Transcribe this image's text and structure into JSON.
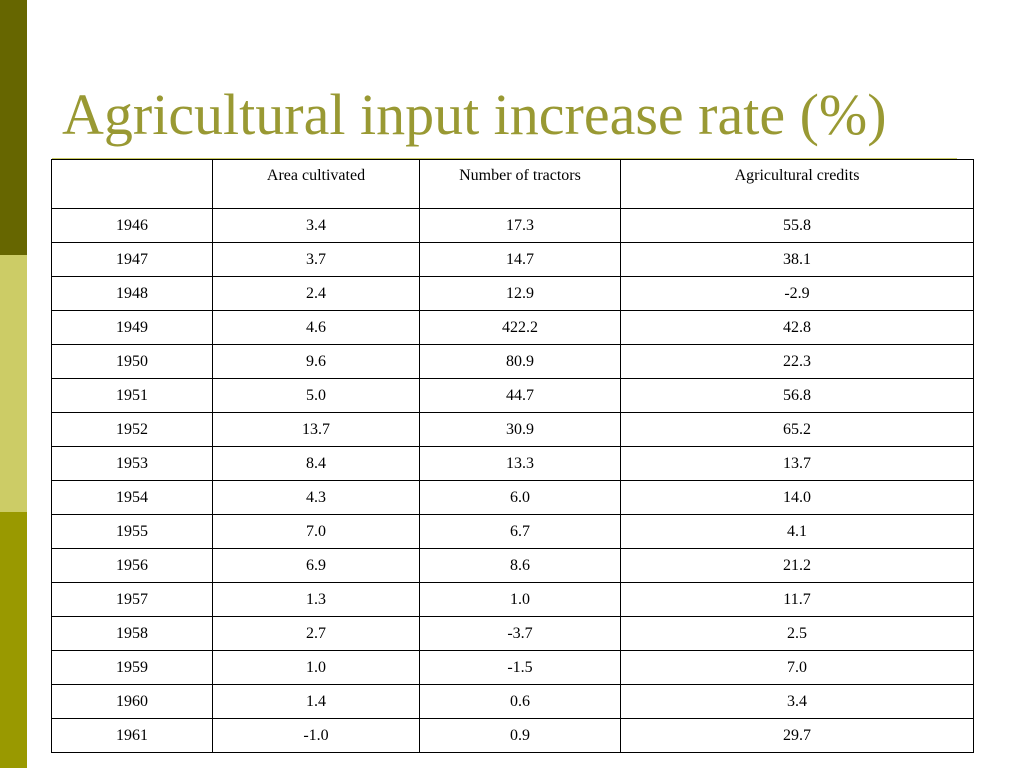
{
  "colors": {
    "sidebar_dark": "#666600",
    "sidebar_light": "#cccc66",
    "sidebar_mid": "#999900",
    "title": "#999933",
    "rule": "#cccc66"
  },
  "slide": {
    "title": "Agricultural input increase rate (%)"
  },
  "table": {
    "columns": [
      "",
      "Area cultivated",
      "Number of tractors",
      "Agricultural credits"
    ],
    "rows": [
      [
        "1946",
        "3.4",
        "17.3",
        "55.8"
      ],
      [
        "1947",
        "3.7",
        "14.7",
        "38.1"
      ],
      [
        "1948",
        "2.4",
        "12.9",
        "-2.9"
      ],
      [
        "1949",
        "4.6",
        "422.2",
        "42.8"
      ],
      [
        "1950",
        "9.6",
        "80.9",
        "22.3"
      ],
      [
        "1951",
        "5.0",
        "44.7",
        "56.8"
      ],
      [
        "1952",
        "13.7",
        "30.9",
        "65.2"
      ],
      [
        "1953",
        "8.4",
        "13.3",
        "13.7"
      ],
      [
        "1954",
        "4.3",
        "6.0",
        "14.0"
      ],
      [
        "1955",
        "7.0",
        "6.7",
        "4.1"
      ],
      [
        "1956",
        "6.9",
        "8.6",
        "21.2"
      ],
      [
        "1957",
        "1.3",
        "1.0",
        "11.7"
      ],
      [
        "1958",
        "2.7",
        "-3.7",
        "2.5"
      ],
      [
        "1959",
        "1.0",
        "-1.5",
        "7.0"
      ],
      [
        "1960",
        "1.4",
        "0.6",
        "3.4"
      ],
      [
        "1961",
        "-1.0",
        "0.9",
        "29.7"
      ]
    ]
  }
}
